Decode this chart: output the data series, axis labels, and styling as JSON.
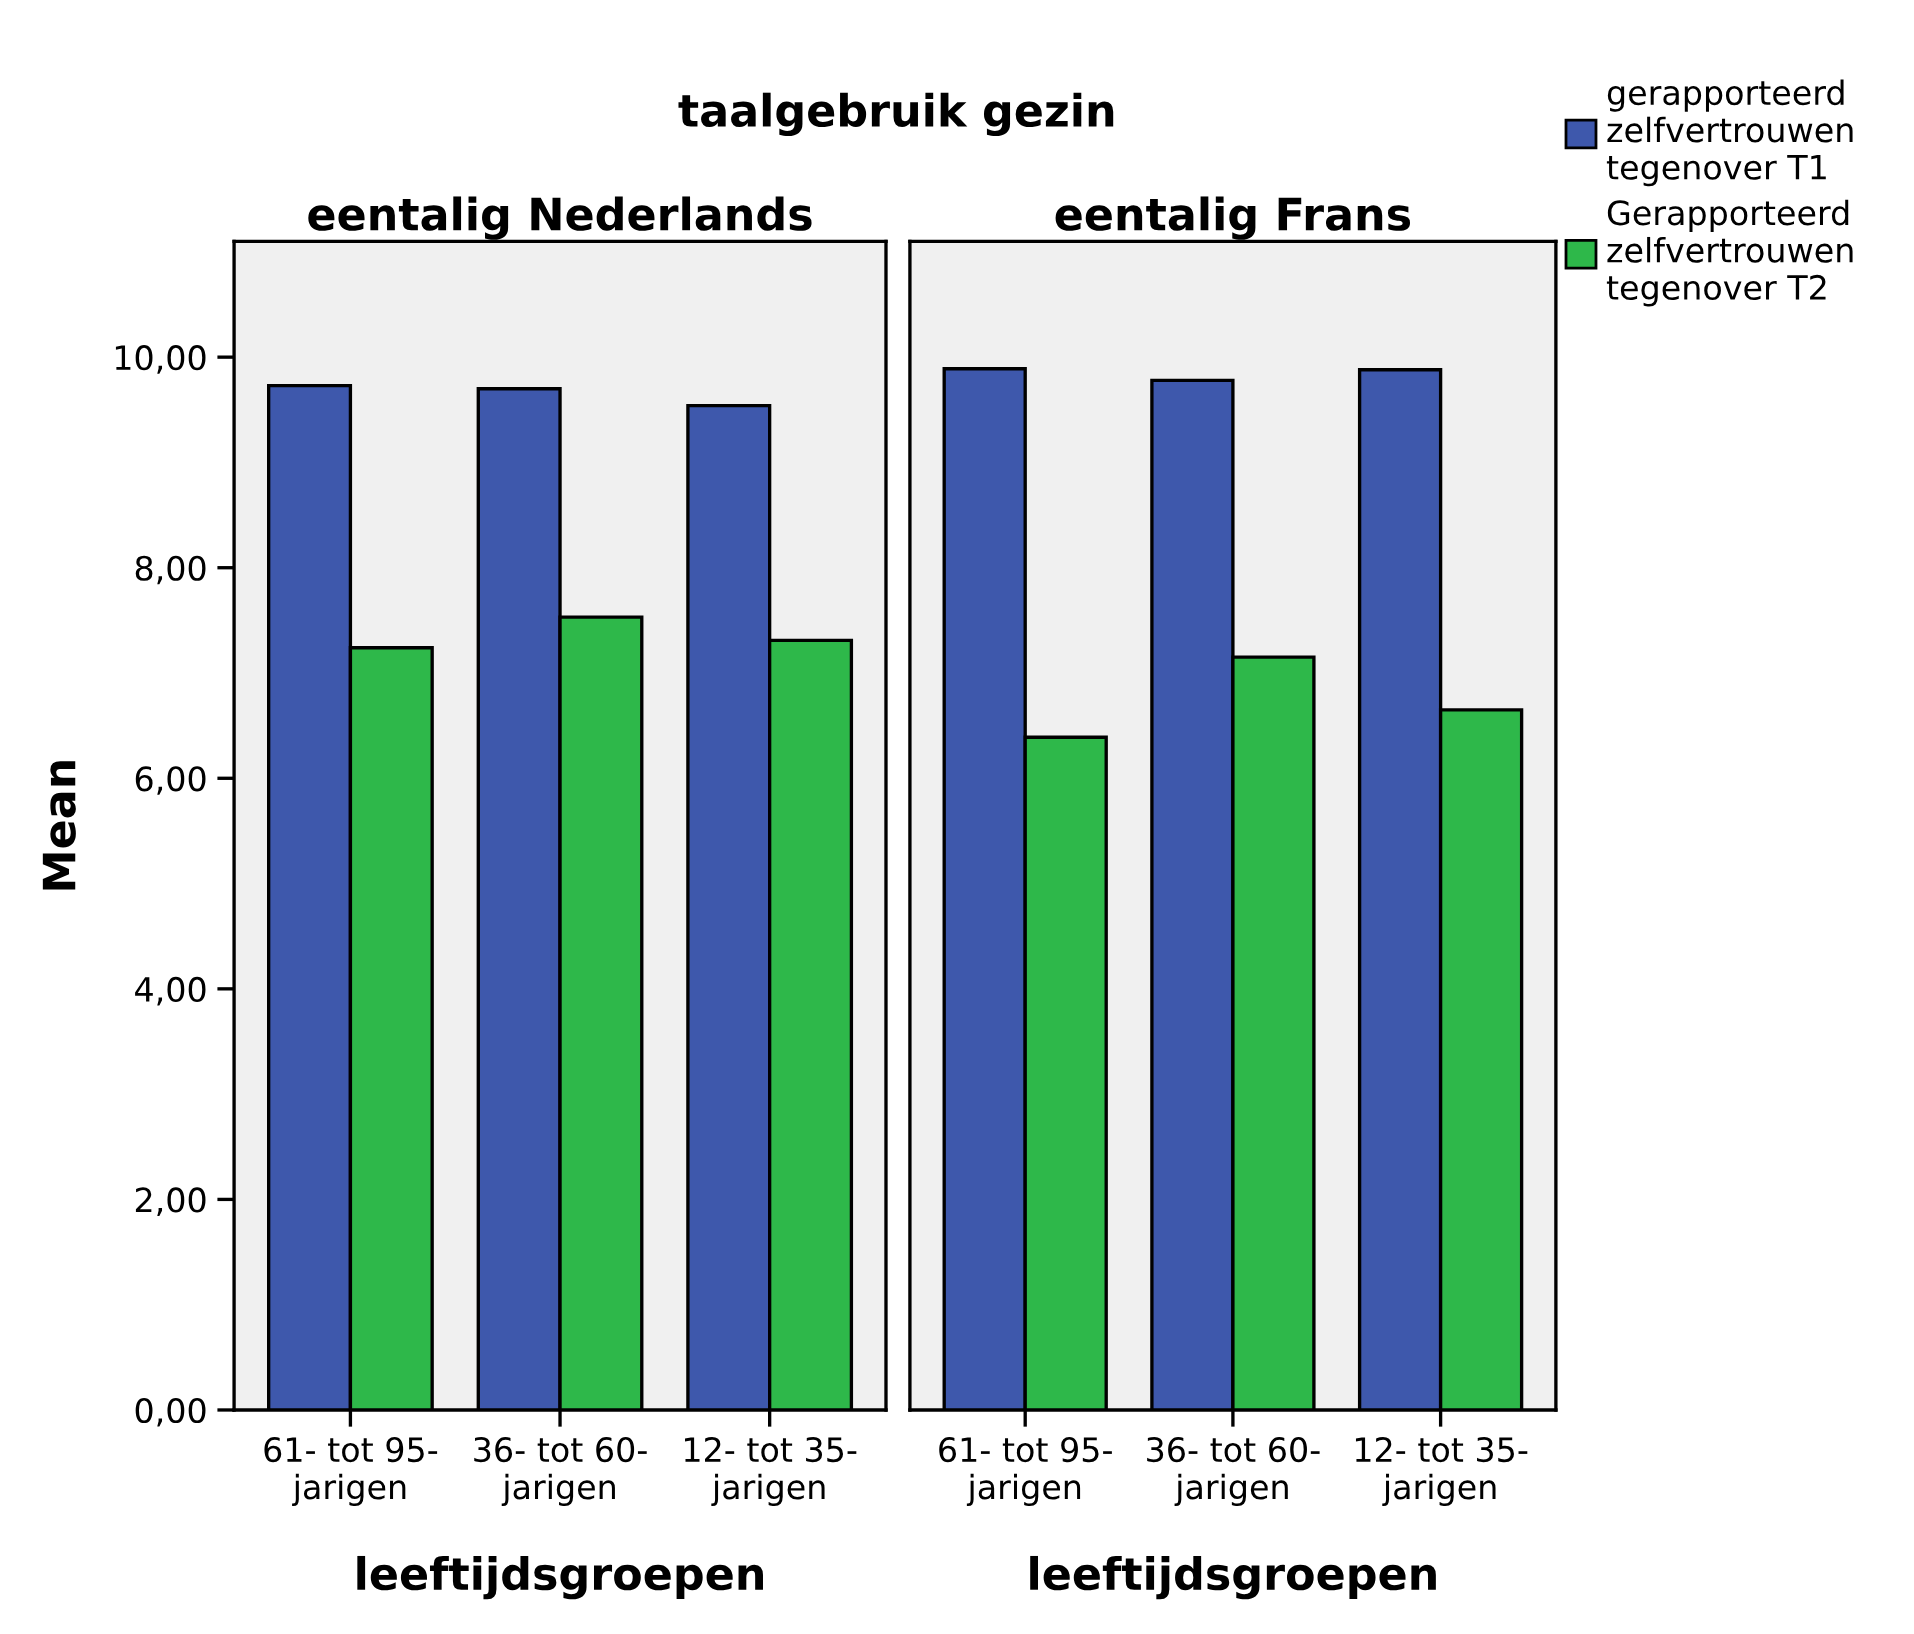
{
  "chart_data": [
    {
      "type": "bar",
      "title": "eentalig Nederlands",
      "annotations": [
        "taalgebruik gezin"
      ],
      "xlabel": "leeftijdsgroepen",
      "ylabel": "Mean",
      "categories": [
        "61- tot 95-\njarigen",
        "36- tot 60-\njarigen",
        "12- tot 35-\njarigen"
      ],
      "series": [
        {
          "color": "#3e58ac",
          "values": [
            9.73,
            9.7,
            9.54
          ]
        },
        {
          "color": "#2eb84a",
          "values": [
            7.24,
            7.53,
            7.31
          ]
        }
      ],
      "ylim": [
        0,
        11.1
      ],
      "yticks": [
        {
          "value": 0,
          "label": "0,00"
        },
        {
          "value": 2,
          "label": "2,00"
        },
        {
          "value": 4,
          "label": "4,00"
        },
        {
          "value": 6,
          "label": "6,00"
        },
        {
          "value": 8,
          "label": "8,00"
        },
        {
          "value": 10,
          "label": "10,00"
        }
      ],
      "grid": false
    },
    {
      "type": "bar",
      "title": "eentalig Frans",
      "xlabel": "leeftijdsgroepen",
      "categories": [
        "61- tot 95-\njarigen",
        "36- tot 60-\njarigen",
        "12- tot 35-\njarigen"
      ],
      "series": [
        {
          "name": "gerapporteerd\nzelfvertrouwen\ntegenover T1",
          "color": "#3e58ac",
          "values": [
            9.89,
            9.78,
            9.88
          ]
        },
        {
          "name": "Gerapporteerd\nzelfvertrouwen\ntegenover T2",
          "color": "#2eb84a",
          "values": [
            6.39,
            7.15,
            6.65
          ]
        }
      ],
      "ylim": [
        0,
        11.1
      ],
      "tick_labels": "x",
      "grid": false,
      "legend": "top right"
    }
  ]
}
